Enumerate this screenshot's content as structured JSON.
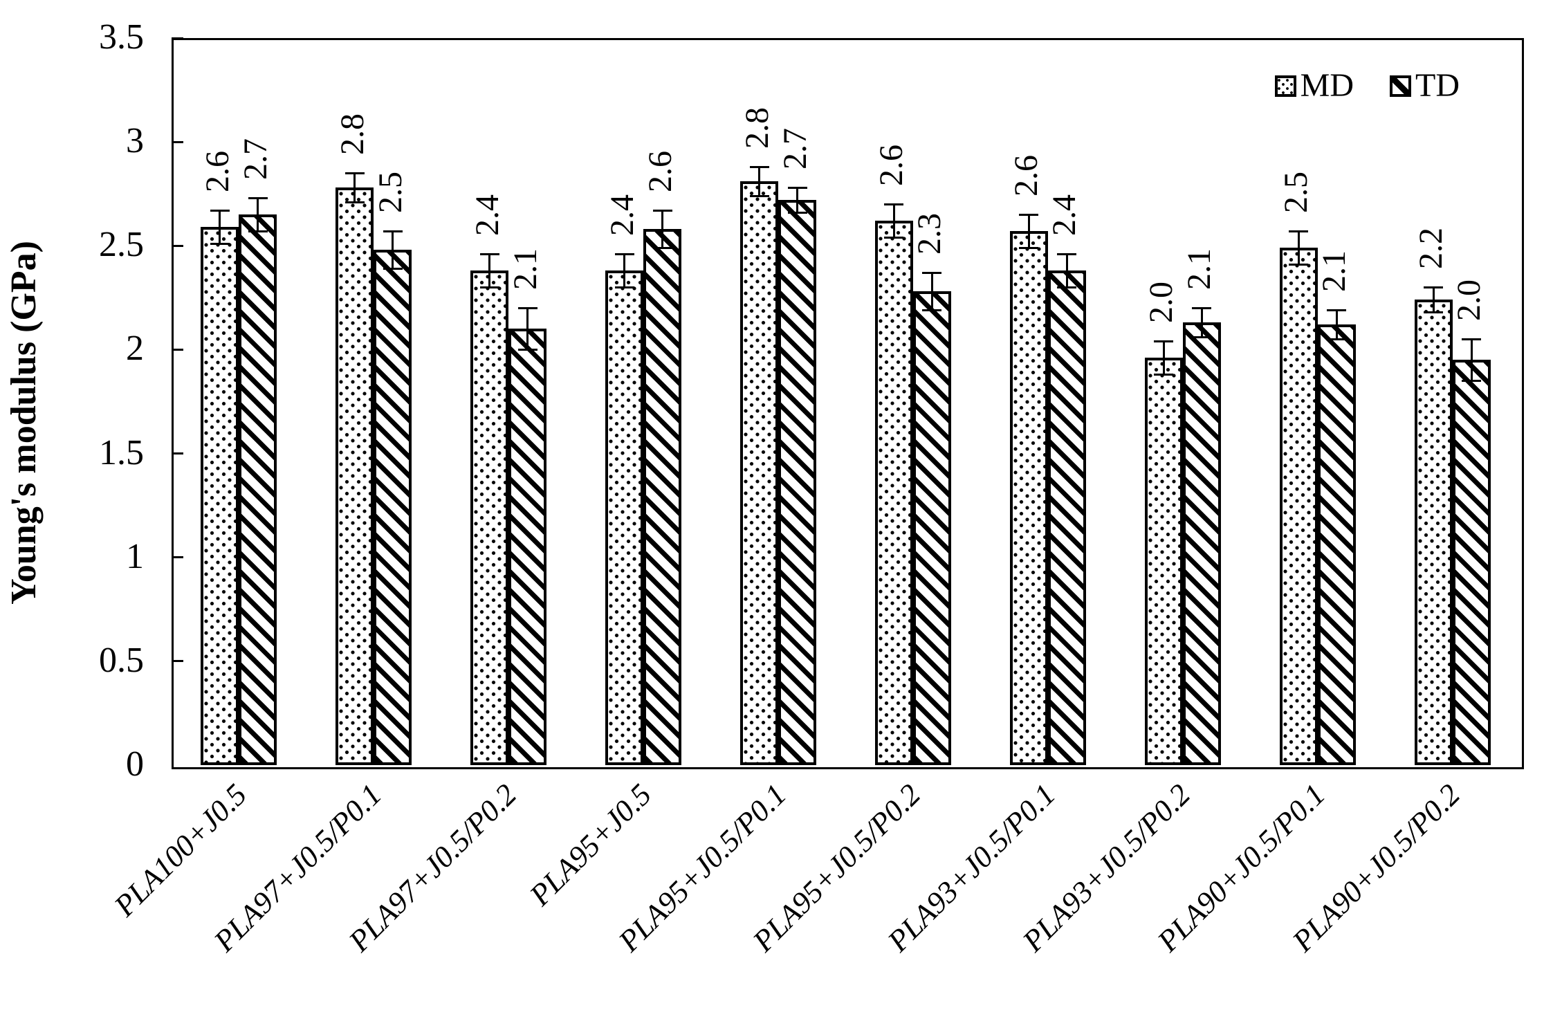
{
  "chart_data": {
    "type": "bar",
    "title": "",
    "xlabel": "",
    "ylabel": "Young's modulus (GPa)",
    "ylim": [
      0,
      3.5
    ],
    "ytick_step": 0.5,
    "ytick_labels": [
      "0",
      "0.5",
      "1",
      "1.5",
      "2",
      "2.5",
      "3",
      "3.5"
    ],
    "grid": false,
    "legend_position": "top-right-inside",
    "bar_style": "white fill, black border, monochrome fill patterns, vertical value labels above error bars",
    "categories": [
      "PLA100+J0.5",
      "PLA97+J0.5/P0.1",
      "PLA97+J0.5/P0.2",
      "PLA95+J0.5",
      "PLA95+J0.5/P0.1",
      "PLA95+J0.5/P0.2",
      "PLA93+J0.5/P0.1",
      "PLA93+J0.5/P0.2",
      "PLA90+J0.5/P0.1",
      "PLA90+J0.5/P0.2"
    ],
    "series": [
      {
        "name": "MD",
        "pattern": "dots",
        "values": [
          2.59,
          2.78,
          2.38,
          2.38,
          2.81,
          2.62,
          2.57,
          1.96,
          2.49,
          2.24
        ],
        "labels": [
          "2.6",
          "2.8",
          "2.4",
          "2.4",
          "2.8",
          "2.6",
          "2.6",
          "2.0",
          "2.5",
          "2.2"
        ],
        "errors": [
          0.08,
          0.07,
          0.08,
          0.08,
          0.07,
          0.08,
          0.08,
          0.08,
          0.08,
          0.06
        ]
      },
      {
        "name": "TD",
        "pattern": "diagonal-stripes",
        "values": [
          2.65,
          2.48,
          2.1,
          2.58,
          2.72,
          2.28,
          2.38,
          2.13,
          2.12,
          1.95
        ],
        "labels": [
          "2.7",
          "2.5",
          "2.1",
          "2.6",
          "2.7",
          "2.3",
          "2.4",
          "2.1",
          "2.1",
          "2.0"
        ],
        "errors": [
          0.08,
          0.09,
          0.1,
          0.09,
          0.06,
          0.09,
          0.08,
          0.07,
          0.07,
          0.1
        ]
      }
    ],
    "colors": {
      "background": "#ffffff",
      "bar_fill": "#ffffff",
      "bar_border": "#000000",
      "text": "#000000",
      "axis": "#000000"
    }
  }
}
